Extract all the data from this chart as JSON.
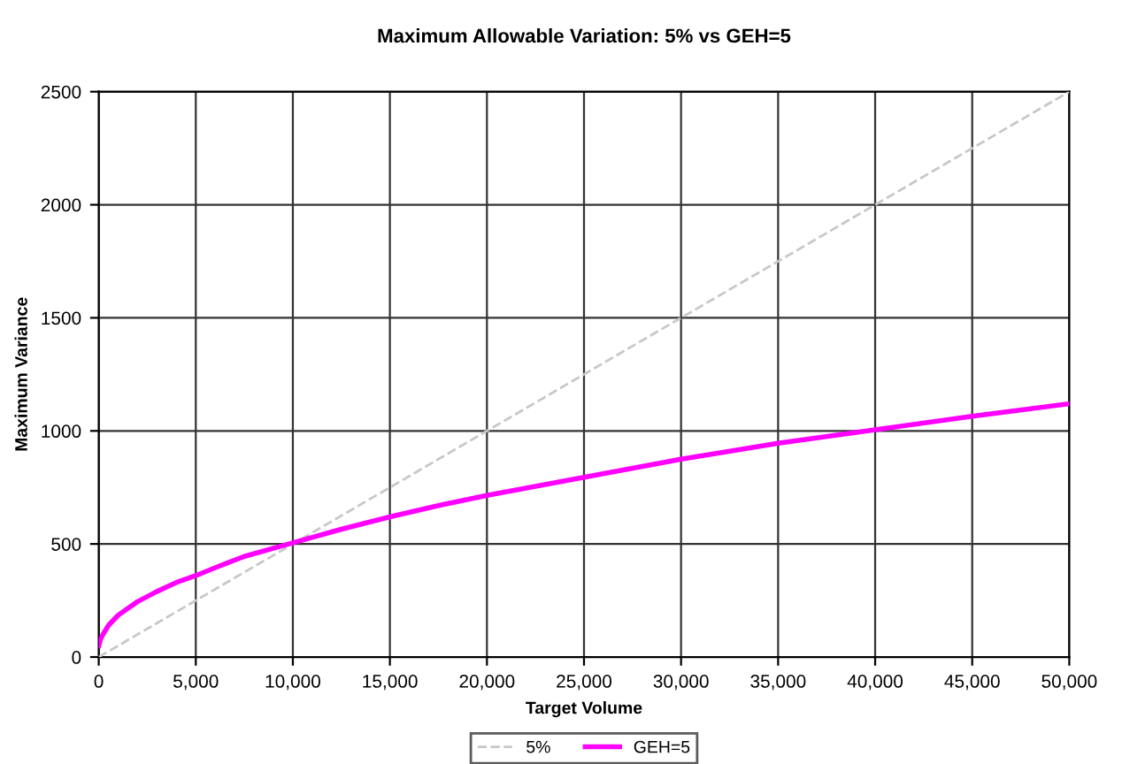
{
  "chart_data": {
    "type": "line",
    "title": "Maximum Allowable Variation: 5% vs GEH=5",
    "xlabel": "Target Volume",
    "ylabel": "Maximum Variance",
    "xlim": [
      0,
      50000
    ],
    "xticks": [
      0,
      {
        "value": 5000,
        "label": "5,000"
      },
      {
        "value": 10000,
        "label": "10,000"
      },
      {
        "value": 15000,
        "label": "15,000"
      },
      {
        "value": 20000,
        "label": "20,000"
      },
      {
        "value": 25000,
        "label": "25,000"
      },
      {
        "value": 30000,
        "label": "30,000"
      },
      {
        "value": 35000,
        "label": "35,000"
      },
      {
        "value": 40000,
        "label": "40,000"
      },
      {
        "value": 45000,
        "label": "45,000"
      },
      {
        "value": 50000,
        "label": "50,000"
      }
    ],
    "ylim": [
      0,
      2500
    ],
    "yticks": [
      0,
      500,
      1000,
      1500,
      2000,
      2500
    ],
    "grid": true,
    "legend": "bottom",
    "series": [
      {
        "name": "5%",
        "color": "#c8c8c8",
        "line_style": "dashed",
        "x": [
          0,
          10000,
          20000,
          30000,
          40000,
          50000
        ],
        "values": [
          0,
          500,
          1000,
          1500,
          2000,
          2500
        ]
      },
      {
        "name": "GEH=5",
        "color": "#ff00ff",
        "line_style": "solid",
        "x": [
          0,
          100,
          250,
          500,
          1000,
          1500,
          2000,
          3000,
          4000,
          5000,
          6000,
          7500,
          10000,
          12500,
          15000,
          17500,
          20000,
          25000,
          30000,
          35000,
          40000,
          45000,
          50000
        ],
        "values": [
          50,
          80,
          105,
          140,
          185,
          215,
          245,
          290,
          330,
          360,
          395,
          445,
          505,
          565,
          620,
          670,
          715,
          795,
          875,
          945,
          1005,
          1065,
          1120
        ]
      }
    ]
  }
}
